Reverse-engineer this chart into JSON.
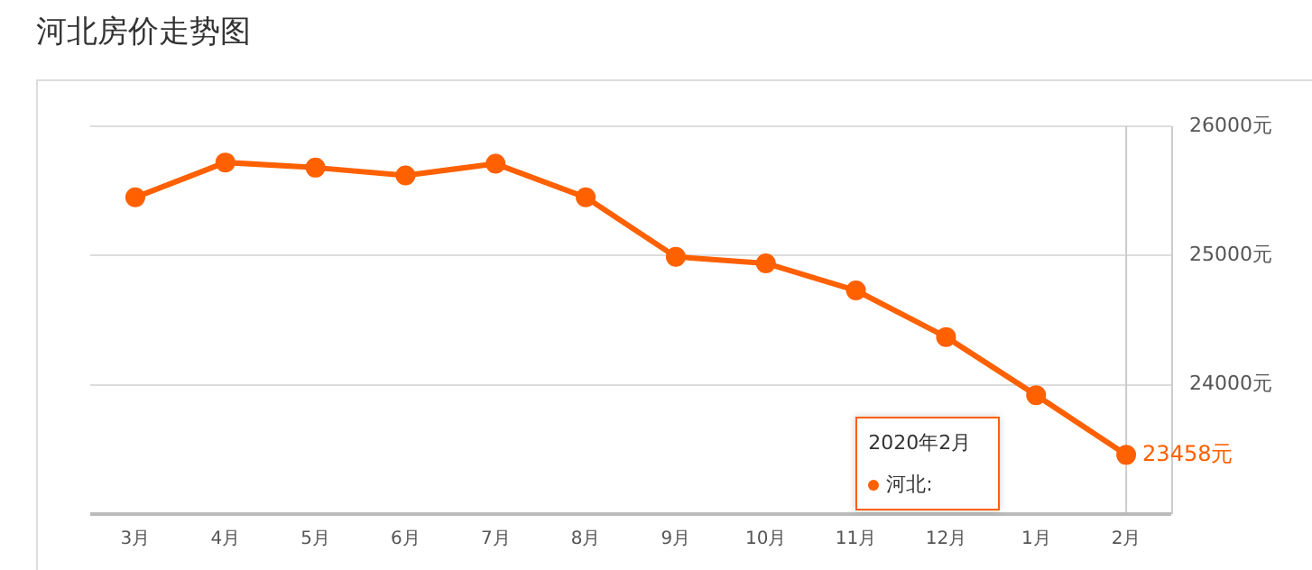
{
  "chart_data": {
    "type": "line",
    "title": "河北房价走势图",
    "categories": [
      "3月",
      "4月",
      "5月",
      "6月",
      "7月",
      "8月",
      "9月",
      "10月",
      "11月",
      "12月",
      "1月",
      "2月"
    ],
    "series": [
      {
        "name": "河北:",
        "color": "#ff6000",
        "values": [
          25450,
          25720,
          25680,
          25620,
          25710,
          25450,
          24990,
          24940,
          24730,
          24370,
          23920,
          23458
        ],
        "value_labels": [
          null,
          null,
          null,
          null,
          null,
          null,
          null,
          null,
          null,
          null,
          null,
          "23458元"
        ]
      }
    ],
    "ylim": [
      23000,
      26000
    ],
    "yticks": [
      {
        "value": 23000,
        "label": null
      },
      {
        "value": 24000,
        "label": "24000元"
      },
      {
        "value": 25000,
        "label": "25000元"
      },
      {
        "value": 26000,
        "label": "26000元"
      }
    ],
    "grid": "y",
    "marker": "circle",
    "line_style": "solid",
    "legend": "bottom right",
    "ref_lines": [
      {
        "axis": "x",
        "value": "2月",
        "color": "#cccccc"
      }
    ],
    "annotations": [
      "2020年2月"
    ]
  }
}
